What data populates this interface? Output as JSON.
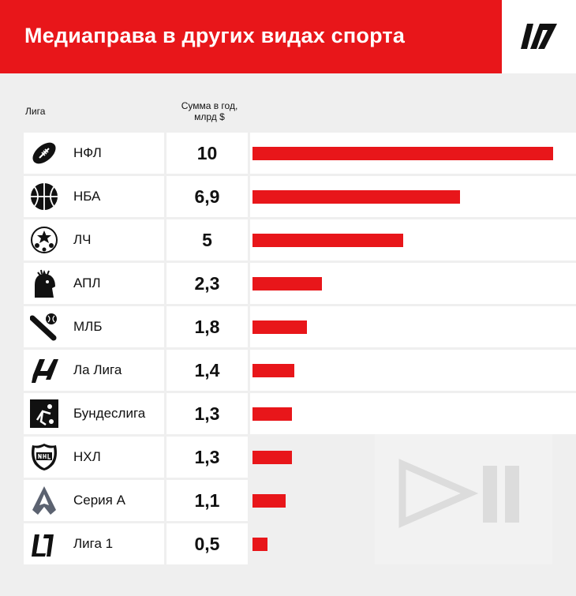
{
  "header": {
    "title": "Медиаправа в других видах спорта"
  },
  "columns": {
    "league": "Лига",
    "sum_line1": "Сумма в год,",
    "sum_line2": "млрд $"
  },
  "colors": {
    "accent": "#e8161a",
    "background": "#efefef",
    "cell": "#ffffff"
  },
  "chart_data": {
    "type": "bar",
    "orientation": "horizontal",
    "categories": [
      "НФЛ",
      "НБА",
      "ЛЧ",
      "АПЛ",
      "МЛБ",
      "Ла Лига",
      "Бундеслига",
      "НХЛ",
      "Серия А",
      "Лига 1"
    ],
    "values": [
      10,
      6.9,
      5,
      2.3,
      1.8,
      1.4,
      1.3,
      1.3,
      1.1,
      0.5
    ],
    "value_labels": [
      "10",
      "6,9",
      "5",
      "2,3",
      "1,8",
      "1,4",
      "1,3",
      "1,3",
      "1,1",
      "0,5"
    ],
    "icons": [
      "football-icon",
      "basketball-icon",
      "champions-league-icon",
      "premier-league-lion-icon",
      "baseball-icon",
      "laliga-icon",
      "bundesliga-icon",
      "nhl-shield-icon",
      "serie-a-icon",
      "ligue-1-icon"
    ],
    "xlim": [
      0,
      10
    ],
    "title": "Медиаправа в других видах спорта",
    "xlabel": "Сумма в год, млрд $",
    "ylabel": "Лига"
  }
}
